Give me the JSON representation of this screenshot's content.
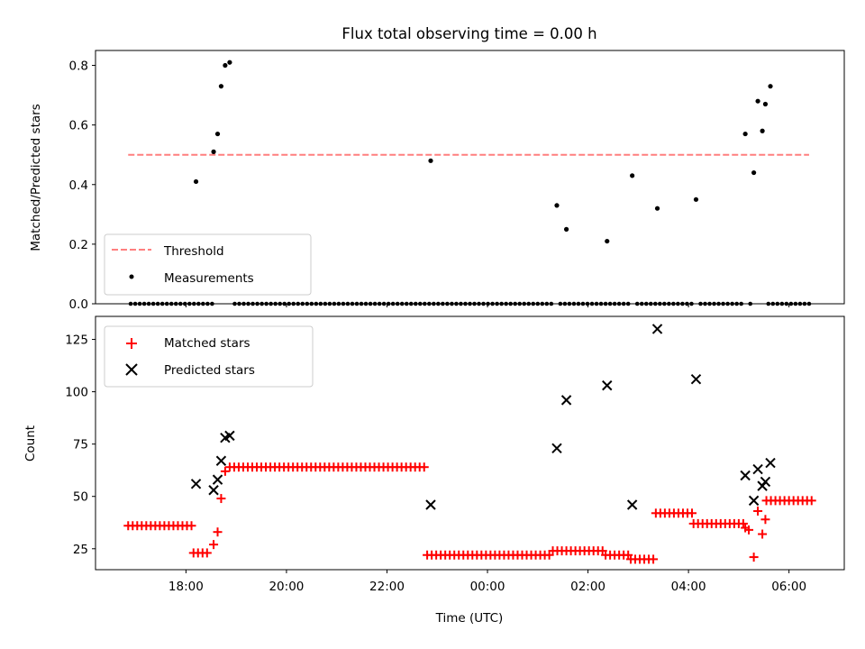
{
  "chart_data": [
    {
      "type": "scatter",
      "panel": "top",
      "title": "Flux total observing time = 0.00 h",
      "xlabel": "",
      "ylabel": "Matched/Predicted stars",
      "ylim": [
        0,
        0.85
      ],
      "yticks": [
        0.0,
        0.2,
        0.4,
        0.6,
        0.8
      ],
      "yticklabels": [
        "0.0",
        "0.2",
        "0.4",
        "0.6",
        "0.8"
      ],
      "legend_placement": "lower-left",
      "series": [
        {
          "name": "Threshold",
          "kind": "dashed-line",
          "color": "#ff7f7f",
          "x": [
            16.85,
            30.4
          ],
          "y": [
            0.5,
            0.5
          ]
        },
        {
          "name": "Measurements",
          "kind": "points",
          "color": "#000000",
          "nonzero_x": [
            18.2,
            18.55,
            18.63,
            18.7,
            18.78,
            18.87,
            22.87,
            25.38,
            25.57,
            26.38,
            26.88,
            27.38,
            28.15,
            29.13,
            29.3,
            29.38,
            29.47,
            29.53,
            29.63
          ],
          "nonzero_y": [
            0.41,
            0.51,
            0.57,
            0.73,
            0.8,
            0.81,
            0.48,
            0.33,
            0.25,
            0.21,
            0.43,
            0.32,
            0.35,
            0.57,
            0.44,
            0.68,
            0.58,
            0.67,
            0.73
          ]
        }
      ]
    },
    {
      "type": "scatter",
      "panel": "bottom",
      "xlabel": "Time (UTC)",
      "ylabel": "Count",
      "xlim": [
        16.2,
        31.1
      ],
      "ylim": [
        15,
        136
      ],
      "yticks": [
        25,
        50,
        75,
        100,
        125
      ],
      "yticklabels": [
        "25",
        "50",
        "75",
        "100",
        "125"
      ],
      "xticks": [
        18,
        20,
        22,
        24,
        26,
        28,
        30
      ],
      "xticklabels": [
        "18:00",
        "20:00",
        "22:00",
        "00:00",
        "02:00",
        "04:00",
        "06:00"
      ],
      "legend_placement": "upper-left",
      "series": [
        {
          "name": "Matched stars",
          "marker": "plus",
          "color": "#ff0000",
          "segments": [
            {
              "x0": 16.85,
              "x1": 18.15,
              "y": 36
            },
            {
              "x0": 18.15,
              "x1": 18.5,
              "y": 23
            },
            {
              "x0": 18.87,
              "x1": 22.8,
              "y": 64
            },
            {
              "x0": 22.8,
              "x1": 25.3,
              "y": 22
            },
            {
              "x0": 25.3,
              "x1": 26.35,
              "y": 24
            },
            {
              "x0": 26.35,
              "x1": 26.85,
              "y": 22
            },
            {
              "x0": 26.85,
              "x1": 27.35,
              "y": 20
            },
            {
              "x0": 27.35,
              "x1": 28.1,
              "y": 42
            },
            {
              "x0": 28.1,
              "x1": 29.1,
              "y": 37
            },
            {
              "x0": 29.55,
              "x1": 30.45,
              "y": 48
            }
          ],
          "extra_x": [
            18.55,
            18.63,
            18.7,
            18.78,
            29.13,
            29.2,
            29.3,
            29.38,
            29.47,
            29.53
          ],
          "extra_y": [
            27,
            33,
            49,
            62,
            35,
            34,
            21,
            43,
            32,
            39
          ]
        },
        {
          "name": "Predicted stars",
          "marker": "x",
          "color": "#000000",
          "x": [
            18.2,
            18.55,
            18.63,
            18.7,
            18.78,
            18.87,
            22.87,
            25.38,
            25.57,
            26.38,
            26.88,
            27.38,
            28.15,
            29.13,
            29.3,
            29.38,
            29.47,
            29.53,
            29.63
          ],
          "y": [
            56,
            53,
            58,
            67,
            78,
            79,
            46,
            73,
            96,
            103,
            46,
            130,
            106,
            60,
            48,
            63,
            55,
            57,
            66
          ]
        }
      ]
    }
  ]
}
